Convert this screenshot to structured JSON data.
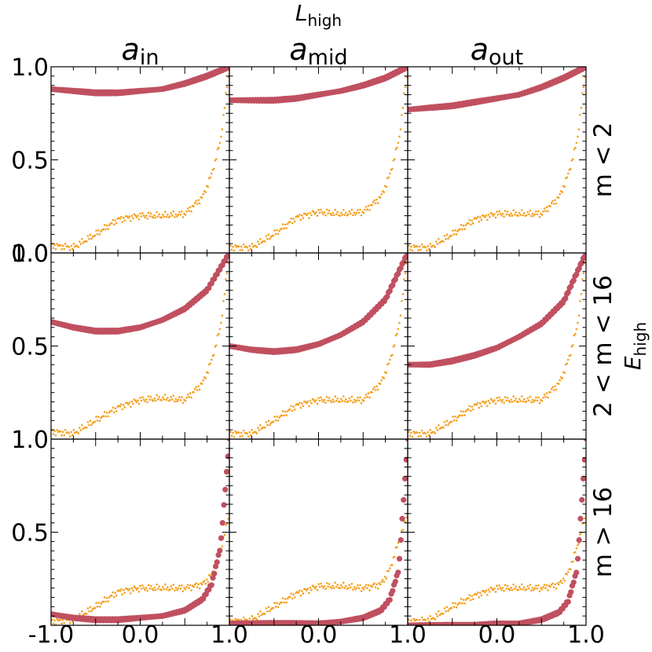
{
  "figure": {
    "top_title": {
      "main": "L",
      "sub": "high"
    },
    "right_label": {
      "main": "E",
      "sub": "high"
    },
    "col_titles": [
      {
        "main": "a",
        "sub": "in"
      },
      {
        "main": "a",
        "sub": "mid"
      },
      {
        "main": "a",
        "sub": "out"
      }
    ],
    "row_labels": [
      "m < 2",
      "2 < m < 16",
      "m > 16"
    ],
    "ytick_labels": [
      "0.0",
      "0.5",
      "1.0"
    ],
    "xtick_labels": [
      [
        "-1.0",
        "0.0",
        "1.0"
      ],
      [
        "1.0",
        "0.0",
        "1.0"
      ],
      [
        "1.0",
        "0.0",
        "1.0"
      ]
    ]
  },
  "chart_data": {
    "type": "scatter",
    "grid": "3x3 small multiples",
    "xlim": [
      -1,
      1
    ],
    "ylim": [
      0,
      1
    ],
    "series_styles": [
      {
        "name": "thick",
        "color": "#c05060",
        "style": "thick dotted markers"
      },
      {
        "name": "thin",
        "color": "#f5a020",
        "style": "small dotted markers"
      }
    ],
    "panels": [
      {
        "row": 0,
        "col": 0,
        "thick": {
          "x": [
            -1.0,
            -0.75,
            -0.5,
            -0.25,
            0.0,
            0.25,
            0.5,
            0.75,
            1.0
          ],
          "y": [
            0.88,
            0.87,
            0.86,
            0.86,
            0.87,
            0.88,
            0.91,
            0.95,
            1.0
          ]
        },
        "thin": {
          "x": [
            -1.0,
            -0.75,
            -0.5,
            -0.25,
            0.0,
            0.25,
            0.5,
            0.7,
            0.8,
            0.9,
            1.0
          ],
          "y": [
            0.04,
            0.03,
            0.1,
            0.18,
            0.2,
            0.2,
            0.21,
            0.3,
            0.42,
            0.6,
            1.0
          ]
        }
      },
      {
        "row": 0,
        "col": 1,
        "thick": {
          "x": [
            -1.0,
            -0.75,
            -0.5,
            -0.25,
            0.0,
            0.25,
            0.5,
            0.75,
            1.0
          ],
          "y": [
            0.82,
            0.82,
            0.82,
            0.83,
            0.85,
            0.87,
            0.9,
            0.94,
            1.0
          ]
        },
        "thin": {
          "x": [
            -1.0,
            -0.75,
            -0.5,
            -0.25,
            0.0,
            0.25,
            0.5,
            0.7,
            0.8,
            0.9,
            1.0
          ],
          "y": [
            0.03,
            0.03,
            0.1,
            0.19,
            0.22,
            0.21,
            0.22,
            0.3,
            0.42,
            0.6,
            1.0
          ]
        }
      },
      {
        "row": 0,
        "col": 2,
        "thick": {
          "x": [
            -1.0,
            -0.75,
            -0.5,
            -0.25,
            0.0,
            0.25,
            0.5,
            0.75,
            1.0
          ],
          "y": [
            0.77,
            0.78,
            0.79,
            0.81,
            0.83,
            0.85,
            0.89,
            0.94,
            1.0
          ]
        },
        "thin": {
          "x": [
            -1.0,
            -0.75,
            -0.5,
            -0.25,
            0.0,
            0.25,
            0.5,
            0.7,
            0.8,
            0.9,
            1.0
          ],
          "y": [
            0.03,
            0.03,
            0.1,
            0.18,
            0.21,
            0.21,
            0.21,
            0.3,
            0.42,
            0.6,
            1.0
          ]
        }
      },
      {
        "row": 1,
        "col": 0,
        "thick": {
          "x": [
            -1.0,
            -0.75,
            -0.5,
            -0.25,
            0.0,
            0.25,
            0.5,
            0.75,
            1.0
          ],
          "y": [
            0.63,
            0.6,
            0.58,
            0.58,
            0.6,
            0.64,
            0.7,
            0.8,
            1.0
          ]
        },
        "thin": {
          "x": [
            -1.0,
            -0.75,
            -0.5,
            -0.25,
            0.0,
            0.25,
            0.5,
            0.7,
            0.8,
            0.9,
            1.0
          ],
          "y": [
            0.04,
            0.03,
            0.1,
            0.17,
            0.21,
            0.22,
            0.21,
            0.3,
            0.42,
            0.6,
            1.0
          ]
        }
      },
      {
        "row": 1,
        "col": 1,
        "thick": {
          "x": [
            -1.0,
            -0.75,
            -0.5,
            -0.25,
            0.0,
            0.25,
            0.5,
            0.75,
            1.0
          ],
          "y": [
            0.5,
            0.48,
            0.47,
            0.48,
            0.51,
            0.56,
            0.63,
            0.75,
            1.0
          ]
        },
        "thin": {
          "x": [
            -1.0,
            -0.75,
            -0.5,
            -0.25,
            0.0,
            0.25,
            0.5,
            0.7,
            0.8,
            0.9,
            1.0
          ],
          "y": [
            0.03,
            0.03,
            0.1,
            0.18,
            0.21,
            0.21,
            0.21,
            0.3,
            0.42,
            0.6,
            1.0
          ]
        }
      },
      {
        "row": 1,
        "col": 2,
        "thick": {
          "x": [
            -1.0,
            -0.75,
            -0.5,
            -0.25,
            0.0,
            0.25,
            0.5,
            0.75,
            1.0
          ],
          "y": [
            0.4,
            0.4,
            0.42,
            0.45,
            0.49,
            0.55,
            0.62,
            0.74,
            1.0
          ]
        },
        "thin": {
          "x": [
            -1.0,
            -0.75,
            -0.5,
            -0.25,
            0.0,
            0.25,
            0.5,
            0.7,
            0.8,
            0.9,
            1.0
          ],
          "y": [
            0.03,
            0.03,
            0.1,
            0.18,
            0.21,
            0.21,
            0.21,
            0.3,
            0.42,
            0.6,
            1.0
          ]
        }
      },
      {
        "row": 2,
        "col": 0,
        "thick": {
          "x": [
            -1.0,
            -0.75,
            -0.5,
            -0.25,
            0.0,
            0.25,
            0.5,
            0.7,
            0.8,
            0.9,
            1.0
          ],
          "y": [
            0.06,
            0.04,
            0.03,
            0.03,
            0.04,
            0.05,
            0.08,
            0.14,
            0.22,
            0.42,
            1.0
          ]
        },
        "thin": {
          "x": [
            -1.0,
            -0.75,
            -0.5,
            -0.25,
            0.0,
            0.25,
            0.5,
            0.7,
            0.8,
            0.9,
            1.0
          ],
          "y": [
            0.02,
            0.03,
            0.1,
            0.18,
            0.2,
            0.2,
            0.2,
            0.22,
            0.27,
            0.4,
            0.6
          ]
        }
      },
      {
        "row": 2,
        "col": 1,
        "thick": {
          "x": [
            -1.0,
            -0.75,
            -0.5,
            -0.25,
            0.0,
            0.25,
            0.5,
            0.7,
            0.8,
            0.9,
            1.0
          ],
          "y": [
            0.01,
            0.01,
            0.01,
            0.01,
            0.01,
            0.02,
            0.04,
            0.08,
            0.14,
            0.3,
            1.0
          ]
        },
        "thin": {
          "x": [
            -1.0,
            -0.75,
            -0.5,
            -0.25,
            0.0,
            0.25,
            0.5,
            0.7,
            0.8,
            0.9,
            1.0
          ],
          "y": [
            0.02,
            0.03,
            0.1,
            0.17,
            0.21,
            0.21,
            0.2,
            0.22,
            0.3,
            0.45,
            0.6
          ]
        }
      },
      {
        "row": 2,
        "col": 2,
        "thick": {
          "x": [
            -1.0,
            -0.75,
            -0.5,
            -0.25,
            0.0,
            0.25,
            0.5,
            0.7,
            0.8,
            0.9,
            1.0
          ],
          "y": [
            0.0,
            0.0,
            0.0,
            0.0,
            0.01,
            0.01,
            0.03,
            0.07,
            0.13,
            0.3,
            1.0
          ]
        },
        "thin": {
          "x": [
            -1.0,
            -0.75,
            -0.5,
            -0.25,
            0.0,
            0.25,
            0.5,
            0.7,
            0.8,
            0.9,
            1.0
          ],
          "y": [
            0.02,
            0.03,
            0.1,
            0.16,
            0.2,
            0.2,
            0.2,
            0.22,
            0.28,
            0.42,
            0.6
          ]
        }
      }
    ]
  }
}
